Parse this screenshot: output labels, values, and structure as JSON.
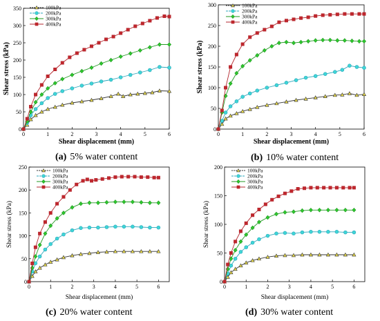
{
  "colors": {
    "100kPa": "#e6d84a",
    "200kPa": "#3fd6d6",
    "300kPa": "#2ec82e",
    "400kPa": "#c0272d",
    "line100": "#333333",
    "line200": "#2aa6bb",
    "line300": "#229922",
    "line400": "#b3262d"
  },
  "chart_data": [
    {
      "type": "line",
      "caption_letter": "(a)",
      "caption_text": "5% water content",
      "xlabel": "Shear displacement (mm)",
      "ylabel": "Shear stress (kPa)",
      "xlim": [
        0,
        6
      ],
      "ylim": [
        0,
        350
      ],
      "xticks": [
        "0",
        "1",
        "2",
        "3",
        "4",
        "5",
        "6"
      ],
      "yticks": [
        "0",
        "50",
        "100",
        "150",
        "200",
        "250",
        "300",
        "350"
      ],
      "series": [
        {
          "name": "100kPa",
          "marker": "triangle",
          "x": [
            0,
            0.15,
            0.3,
            0.5,
            0.75,
            1,
            1.3,
            1.6,
            2,
            2.4,
            2.8,
            3.2,
            3.6,
            3.9,
            4.1,
            4.4,
            4.7,
            5,
            5.3,
            5.6,
            6
          ],
          "y": [
            0,
            12,
            28,
            40,
            50,
            58,
            64,
            70,
            76,
            80,
            84,
            89,
            95,
            102,
            95,
            100,
            102,
            104,
            106,
            111,
            110
          ]
        },
        {
          "name": "200kPa",
          "marker": "circle",
          "x": [
            0,
            0.15,
            0.3,
            0.5,
            0.75,
            1,
            1.3,
            1.6,
            2,
            2.4,
            2.8,
            3.2,
            3.6,
            4,
            4.4,
            4.8,
            5.2,
            5.6,
            6
          ],
          "y": [
            0,
            18,
            40,
            58,
            75,
            90,
            102,
            110,
            118,
            126,
            132,
            138,
            143,
            150,
            157,
            164,
            171,
            180,
            178
          ]
        },
        {
          "name": "300kPa",
          "marker": "diamond",
          "x": [
            0,
            0.15,
            0.3,
            0.5,
            0.75,
            1,
            1.3,
            1.6,
            2,
            2.4,
            2.8,
            3.2,
            3.6,
            4,
            4.4,
            4.8,
            5.2,
            5.6,
            6
          ],
          "y": [
            0,
            22,
            50,
            78,
            100,
            118,
            133,
            145,
            157,
            168,
            178,
            190,
            200,
            210,
            219,
            228,
            237,
            245,
            245
          ]
        },
        {
          "name": "400kPa",
          "marker": "square",
          "x": [
            0,
            0.15,
            0.3,
            0.5,
            0.75,
            1,
            1.3,
            1.6,
            1.9,
            2.2,
            2.5,
            2.8,
            3.1,
            3.4,
            3.7,
            4,
            4.3,
            4.6,
            4.9,
            5.2,
            5.5,
            5.8,
            6
          ],
          "y": [
            0,
            30,
            65,
            100,
            128,
            153,
            173,
            192,
            208,
            220,
            230,
            240,
            250,
            260,
            268,
            278,
            288,
            298,
            306,
            314,
            322,
            327,
            326
          ]
        }
      ]
    },
    {
      "type": "line",
      "caption_letter": "(b)",
      "caption_text": "10% water content",
      "xlabel": "Shear displacement (mm)",
      "ylabel": "Shear stress (kPa)",
      "xlim": [
        0,
        6
      ],
      "ylim": [
        0,
        300
      ],
      "xticks": [
        "0",
        "1",
        "2",
        "3",
        "4",
        "5",
        "6"
      ],
      "yticks": [
        "0",
        "50",
        "100",
        "150",
        "200",
        "250",
        "300"
      ],
      "series": [
        {
          "name": "100kPa",
          "marker": "triangle",
          "x": [
            0,
            0.15,
            0.3,
            0.5,
            0.75,
            1,
            1.3,
            1.6,
            2,
            2.4,
            2.8,
            3.2,
            3.6,
            4,
            4.4,
            4.8,
            5.1,
            5.4,
            5.7,
            6
          ],
          "y": [
            0,
            12,
            25,
            32,
            38,
            43,
            48,
            53,
            58,
            62,
            66,
            70,
            73,
            76,
            79,
            82,
            83,
            86,
            82,
            84
          ]
        },
        {
          "name": "200kPa",
          "marker": "circle",
          "x": [
            0,
            0.15,
            0.3,
            0.5,
            0.75,
            1,
            1.3,
            1.6,
            2,
            2.4,
            2.8,
            3.2,
            3.6,
            4,
            4.4,
            4.8,
            5.1,
            5.4,
            5.7,
            6
          ],
          "y": [
            0,
            20,
            40,
            55,
            67,
            78,
            86,
            93,
            100,
            106,
            112,
            118,
            124,
            128,
            133,
            138,
            143,
            153,
            150,
            148
          ]
        },
        {
          "name": "300kPa",
          "marker": "diamond",
          "x": [
            0,
            0.15,
            0.3,
            0.5,
            0.75,
            1,
            1.3,
            1.6,
            1.9,
            2.2,
            2.5,
            2.8,
            3.1,
            3.4,
            3.7,
            4,
            4.3,
            4.6,
            4.9,
            5.2,
            5.5,
            5.8,
            6
          ],
          "y": [
            0,
            40,
            80,
            110,
            135,
            152,
            166,
            178,
            190,
            200,
            208,
            210,
            208,
            210,
            212,
            214,
            215,
            215,
            214,
            214,
            213,
            212,
            212
          ]
        },
        {
          "name": "400kPa",
          "marker": "square",
          "x": [
            0,
            0.15,
            0.3,
            0.5,
            0.75,
            1,
            1.3,
            1.6,
            1.9,
            2.2,
            2.5,
            2.8,
            3.1,
            3.4,
            3.7,
            4,
            4.3,
            4.6,
            4.9,
            5.2,
            5.5,
            5.8,
            6
          ],
          "y": [
            0,
            45,
            100,
            150,
            180,
            205,
            222,
            232,
            240,
            248,
            258,
            262,
            265,
            268,
            270,
            273,
            275,
            276,
            277,
            278,
            278,
            278,
            278
          ]
        }
      ]
    },
    {
      "type": "line",
      "caption_letter": "(c)",
      "caption_text": "20% water content",
      "xlabel": "Shear displacement (mm)",
      "ylabel": "Shear stress (kPa)",
      "xlim": [
        0,
        6.5
      ],
      "ylim": [
        0,
        250
      ],
      "xticks": [
        "0",
        "1",
        "2",
        "3",
        "4",
        "5",
        "6"
      ],
      "yticks": [
        "0",
        "50",
        "100",
        "150",
        "200",
        "250"
      ],
      "series": [
        {
          "name": "100kPa",
          "marker": "triangle",
          "x": [
            0,
            0.15,
            0.3,
            0.5,
            0.75,
            1,
            1.3,
            1.6,
            2,
            2.4,
            2.8,
            3.2,
            3.6,
            4,
            4.4,
            4.8,
            5.2,
            5.6,
            6
          ],
          "y": [
            0,
            12,
            22,
            30,
            37,
            43,
            48,
            53,
            57,
            60,
            62,
            64,
            65,
            66,
            66,
            66,
            66,
            66,
            66
          ]
        },
        {
          "name": "200kPa",
          "marker": "circle",
          "x": [
            0,
            0.15,
            0.3,
            0.5,
            0.75,
            1,
            1.3,
            1.6,
            2,
            2.4,
            2.8,
            3.2,
            3.6,
            4,
            4.4,
            4.8,
            5.2,
            5.6,
            6
          ],
          "y": [
            0,
            22,
            40,
            55,
            70,
            82,
            94,
            103,
            112,
            117,
            118,
            118,
            119,
            120,
            120,
            120,
            119,
            118,
            118
          ]
        },
        {
          "name": "300kPa",
          "marker": "diamond",
          "x": [
            0,
            0.15,
            0.3,
            0.5,
            0.75,
            1,
            1.3,
            1.6,
            2,
            2.4,
            2.8,
            3.2,
            3.6,
            4,
            4.4,
            4.8,
            5.2,
            5.6,
            6
          ],
          "y": [
            0,
            30,
            55,
            80,
            105,
            122,
            138,
            150,
            162,
            170,
            172,
            172,
            173,
            174,
            174,
            174,
            173,
            172,
            172
          ]
        },
        {
          "name": "400kPa",
          "marker": "square",
          "x": [
            0,
            0.15,
            0.3,
            0.5,
            0.75,
            1,
            1.3,
            1.6,
            1.9,
            2.2,
            2.5,
            2.7,
            2.9,
            3.1,
            3.4,
            3.7,
            4,
            4.3,
            4.6,
            4.9,
            5.2,
            5.5,
            5.8,
            6
          ],
          "y": [
            0,
            40,
            75,
            105,
            130,
            150,
            170,
            185,
            200,
            212,
            220,
            223,
            220,
            222,
            224,
            226,
            228,
            229,
            229,
            229,
            228,
            228,
            227,
            227
          ]
        }
      ]
    },
    {
      "type": "line",
      "caption_letter": "(d)",
      "caption_text": "30% water content",
      "xlabel": "Shear displacement (mm)",
      "ylabel": "Shear stress (kPa)",
      "xlim": [
        0,
        6.5
      ],
      "ylim": [
        0,
        200
      ],
      "xticks": [
        "0",
        "1",
        "2",
        "3",
        "4",
        "5",
        "6"
      ],
      "yticks": [
        "0",
        "50",
        "100",
        "150",
        "200"
      ],
      "series": [
        {
          "name": "100kPa",
          "marker": "triangle",
          "x": [
            0,
            0.15,
            0.3,
            0.5,
            0.75,
            1,
            1.3,
            1.6,
            2,
            2.4,
            2.8,
            3.2,
            3.6,
            4,
            4.4,
            4.8,
            5.2,
            5.6,
            6
          ],
          "y": [
            0,
            8,
            16,
            22,
            28,
            33,
            37,
            40,
            43,
            45,
            46,
            46,
            47,
            47,
            47,
            47,
            47,
            47,
            47
          ]
        },
        {
          "name": "200kPa",
          "marker": "circle",
          "x": [
            0,
            0.15,
            0.3,
            0.5,
            0.75,
            1,
            1.3,
            1.6,
            2,
            2.4,
            2.8,
            3.2,
            3.6,
            4,
            4.4,
            4.8,
            5.2,
            5.6,
            6
          ],
          "y": [
            0,
            14,
            28,
            40,
            52,
            60,
            68,
            74,
            80,
            84,
            85,
            84,
            86,
            87,
            87,
            87,
            87,
            86,
            86
          ]
        },
        {
          "name": "300kPa",
          "marker": "diamond",
          "x": [
            0,
            0.15,
            0.3,
            0.5,
            0.75,
            1,
            1.3,
            1.6,
            2,
            2.4,
            2.8,
            3.2,
            3.6,
            4,
            4.4,
            4.8,
            5.2,
            5.6,
            6
          ],
          "y": [
            0,
            22,
            40,
            55,
            70,
            82,
            94,
            104,
            112,
            118,
            121,
            122,
            124,
            125,
            125,
            125,
            125,
            125,
            125
          ]
        },
        {
          "name": "400kPa",
          "marker": "square",
          "x": [
            0,
            0.15,
            0.3,
            0.5,
            0.75,
            1,
            1.3,
            1.6,
            1.9,
            2.2,
            2.5,
            2.8,
            3.1,
            3.4,
            3.7,
            4,
            4.3,
            4.6,
            4.9,
            5.2,
            5.5,
            5.8,
            6
          ],
          "y": [
            0,
            30,
            50,
            70,
            88,
            102,
            116,
            126,
            135,
            143,
            149,
            154,
            158,
            162,
            163,
            164,
            164,
            164,
            164,
            164,
            164,
            164,
            164
          ]
        }
      ]
    }
  ]
}
